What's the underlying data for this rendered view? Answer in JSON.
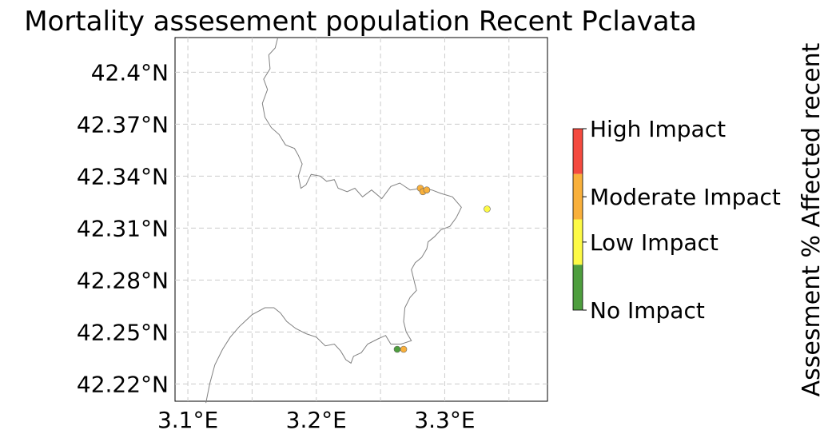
{
  "title": "Mortality assesement population Recent Pclavata",
  "map": {
    "x_ticks": [
      {
        "value": 3.1,
        "label": "3.1°E"
      },
      {
        "value": 3.15,
        "label": ""
      },
      {
        "value": 3.2,
        "label": "3.2°E"
      },
      {
        "value": 3.25,
        "label": ""
      },
      {
        "value": 3.3,
        "label": "3.3°E"
      },
      {
        "value": 3.35,
        "label": ""
      }
    ],
    "y_ticks": [
      {
        "value": 42.22,
        "label": "42.22°N"
      },
      {
        "value": 42.25,
        "label": "42.25°N"
      },
      {
        "value": 42.28,
        "label": "42.28°N"
      },
      {
        "value": 42.31,
        "label": "42.31°N"
      },
      {
        "value": 42.34,
        "label": "42.34°N"
      },
      {
        "value": 42.37,
        "label": "42.37°N"
      },
      {
        "value": 42.4,
        "label": "42.4°N"
      }
    ],
    "lon_range": [
      3.09,
      3.38
    ],
    "lat_range": [
      42.21,
      42.42
    ],
    "grid": "dashed",
    "coastline_color": "#808080",
    "coastline": [
      [
        3.17,
        42.42
      ],
      [
        3.168,
        42.414
      ],
      [
        3.163,
        42.41
      ],
      [
        3.164,
        42.402
      ],
      [
        3.159,
        42.396
      ],
      [
        3.162,
        42.39
      ],
      [
        3.158,
        42.382
      ],
      [
        3.16,
        42.374
      ],
      [
        3.165,
        42.368
      ],
      [
        3.171,
        42.364
      ],
      [
        3.176,
        42.358
      ],
      [
        3.183,
        42.356
      ],
      [
        3.186,
        42.352
      ],
      [
        3.189,
        42.347
      ],
      [
        3.186,
        42.34
      ],
      [
        3.188,
        42.333
      ],
      [
        3.192,
        42.335
      ],
      [
        3.196,
        42.341
      ],
      [
        3.203,
        42.34
      ],
      [
        3.208,
        42.337
      ],
      [
        3.214,
        42.338
      ],
      [
        3.217,
        42.333
      ],
      [
        3.224,
        42.331
      ],
      [
        3.23,
        42.333
      ],
      [
        3.236,
        42.328
      ],
      [
        3.243,
        42.332
      ],
      [
        3.251,
        42.327
      ],
      [
        3.258,
        42.334
      ],
      [
        3.265,
        42.336
      ],
      [
        3.273,
        42.332
      ],
      [
        3.282,
        42.333
      ],
      [
        3.29,
        42.332
      ],
      [
        3.297,
        42.33
      ],
      [
        3.306,
        42.328
      ],
      [
        3.313,
        42.322
      ],
      [
        3.309,
        42.316
      ],
      [
        3.304,
        42.311
      ],
      [
        3.297,
        42.309
      ],
      [
        3.292,
        42.305
      ],
      [
        3.287,
        42.302
      ],
      [
        3.286,
        42.298
      ],
      [
        3.282,
        42.293
      ],
      [
        3.277,
        42.29
      ],
      [
        3.274,
        42.286
      ],
      [
        3.276,
        42.28
      ],
      [
        3.278,
        42.274
      ],
      [
        3.273,
        42.27
      ],
      [
        3.269,
        42.264
      ],
      [
        3.268,
        42.256
      ],
      [
        3.27,
        42.25
      ],
      [
        3.274,
        42.245
      ],
      [
        3.266,
        42.243
      ],
      [
        3.258,
        42.243
      ],
      [
        3.254,
        42.248
      ],
      [
        3.248,
        42.246
      ],
      [
        3.24,
        42.243
      ],
      [
        3.235,
        42.238
      ],
      [
        3.229,
        42.236
      ],
      [
        3.227,
        42.232
      ],
      [
        3.223,
        42.234
      ],
      [
        3.219,
        42.239
      ],
      [
        3.214,
        42.243
      ],
      [
        3.207,
        42.242
      ],
      [
        3.2,
        42.247
      ],
      [
        3.192,
        42.249
      ],
      [
        3.184,
        42.252
      ],
      [
        3.177,
        42.256
      ],
      [
        3.172,
        42.261
      ],
      [
        3.167,
        42.264
      ],
      [
        3.16,
        42.264
      ],
      [
        3.15,
        42.26
      ],
      [
        3.14,
        42.253
      ],
      [
        3.133,
        42.247
      ],
      [
        3.127,
        42.24
      ],
      [
        3.121,
        42.231
      ],
      [
        3.117,
        42.22
      ],
      [
        3.114,
        42.209
      ]
    ],
    "sites": [
      {
        "lon": 3.281,
        "lat": 42.333,
        "category": "Moderate Impact"
      },
      {
        "lon": 3.283,
        "lat": 42.331,
        "category": "Moderate Impact"
      },
      {
        "lon": 3.286,
        "lat": 42.332,
        "category": "Moderate Impact"
      },
      {
        "lon": 3.333,
        "lat": 42.321,
        "category": "Low Impact"
      },
      {
        "lon": 3.263,
        "lat": 42.24,
        "category": "No Impact"
      },
      {
        "lon": 3.268,
        "lat": 42.24,
        "category": "Moderate Impact"
      }
    ]
  },
  "colorbar": {
    "label": "Assesment % Affected recent",
    "levels": [
      {
        "label": "High Impact",
        "color": "#f44a3f"
      },
      {
        "label": "Moderate Impact",
        "color": "#f9b03b"
      },
      {
        "label": "Low Impact",
        "color": "#fdfa45"
      },
      {
        "label": "No Impact",
        "color": "#4e9e3e"
      }
    ]
  }
}
